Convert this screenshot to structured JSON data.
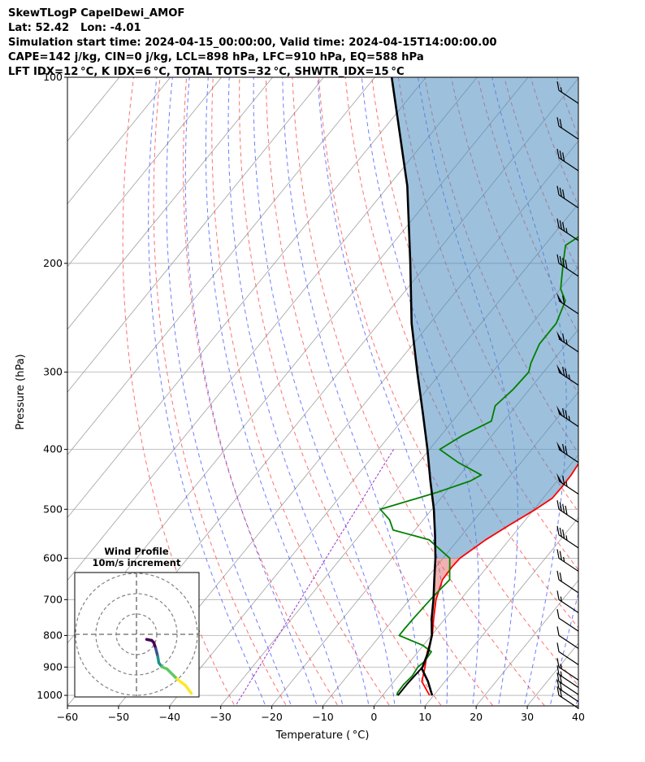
{
  "title_lines": [
    "SkewTLogP CapelDewi_AMOF",
    "Lat: 52.42   Lon: -4.01",
    "Simulation start time: 2024-04-15_00:00:00, Valid time: 2024-04-15T14:00:00.00",
    "CAPE=142 j/kg, CIN=0 j/kg, LCL=898 hPa, LFC=910 hPa, EQ=588 hPa",
    "LFT IDX=12 °C, K IDX=6 °C, TOTAL TOTS=32 °C, SHWTR_IDX=15 °C"
  ],
  "chart_data": {
    "type": "skewt",
    "xlabel": "Temperature ( °C)",
    "ylabel": "Pressure (hPa)",
    "xlim": [
      -60,
      40
    ],
    "ylim": [
      1040,
      100
    ],
    "x_ticks": [
      -60,
      -50,
      -40,
      -30,
      -20,
      -10,
      0,
      10,
      20,
      30,
      40
    ],
    "x_tick_labels": [
      "−60",
      "−50",
      "−40",
      "−30",
      "−20",
      "−10",
      "0",
      "10",
      "20",
      "30",
      "40"
    ],
    "y_ticks": [
      1000,
      900,
      800,
      700,
      600,
      500,
      400,
      300,
      200,
      100
    ],
    "y_tick_labels": [
      "1000",
      "900",
      "800",
      "700",
      "600",
      "500",
      "400",
      "300",
      "200",
      "100"
    ],
    "grid": true,
    "series": [
      {
        "kind": "temperature",
        "color": "#ff0000",
        "points": [
          [
            1000,
            9.2
          ],
          [
            950,
            5.5
          ],
          [
            900,
            3.8
          ],
          [
            850,
            1.8
          ],
          [
            800,
            0.2
          ],
          [
            750,
            -2.3
          ],
          [
            700,
            -4.8
          ],
          [
            650,
            -6.7
          ],
          [
            620,
            -6.9
          ],
          [
            600,
            -6.7
          ],
          [
            560,
            -4.6
          ],
          [
            530,
            -2.3
          ],
          [
            500,
            0.3
          ],
          [
            480,
            1.8
          ],
          [
            460,
            1.9
          ],
          [
            440,
            1.8
          ],
          [
            420,
            1.4
          ],
          [
            400,
            0.6
          ],
          [
            380,
            0.3
          ],
          [
            360,
            -0.3
          ],
          [
            340,
            -0.5
          ],
          [
            320,
            0.0
          ],
          [
            300,
            0.6
          ],
          [
            280,
            1.7
          ],
          [
            260,
            3.1
          ],
          [
            240,
            4.0
          ],
          [
            220,
            5.6
          ],
          [
            200,
            7.5
          ],
          [
            185,
            9.7
          ],
          [
            170,
            12.0
          ],
          [
            160,
            13.5
          ],
          [
            145,
            16.7
          ],
          [
            130,
            18.4
          ],
          [
            115,
            20.8
          ],
          [
            100,
            21.3
          ]
        ]
      },
      {
        "kind": "dewpoint",
        "color": "#008000",
        "points": [
          [
            1000,
            2.8
          ],
          [
            990,
            2.5
          ],
          [
            960,
            2.4
          ],
          [
            930,
            2.7
          ],
          [
            900,
            2.4
          ],
          [
            880,
            2.8
          ],
          [
            850,
            2.6
          ],
          [
            830,
            -0.1
          ],
          [
            800,
            -6.3
          ],
          [
            780,
            -6.3
          ],
          [
            750,
            -6.2
          ],
          [
            700,
            -5.9
          ],
          [
            650,
            -5.3
          ],
          [
            600,
            -8.7
          ],
          [
            560,
            -15.7
          ],
          [
            540,
            -24.3
          ],
          [
            520,
            -26.6
          ],
          [
            500,
            -30.1
          ],
          [
            470,
            -21.8
          ],
          [
            450,
            -17.0
          ],
          [
            440,
            -15.8
          ],
          [
            420,
            -22.3
          ],
          [
            400,
            -28.0
          ],
          [
            380,
            -25.8
          ],
          [
            360,
            -22.4
          ],
          [
            340,
            -24.1
          ],
          [
            320,
            -23.2
          ],
          [
            300,
            -22.9
          ],
          [
            290,
            -23.9
          ],
          [
            270,
            -25.3
          ],
          [
            250,
            -25.3
          ],
          [
            230,
            -27.1
          ],
          [
            220,
            -29.9
          ],
          [
            200,
            -33.5
          ],
          [
            187,
            -35.9
          ],
          [
            170,
            -32.3
          ],
          [
            150,
            -28.4
          ],
          [
            130,
            -23.9
          ],
          [
            115,
            -20.2
          ],
          [
            100,
            -16.0
          ]
        ]
      },
      {
        "kind": "parcel",
        "color": "#000000",
        "points": [
          [
            1000,
            9.7
          ],
          [
            950,
            6.7
          ],
          [
            905,
            3.4
          ],
          [
            900,
            3.3
          ],
          [
            850,
            2.0
          ],
          [
            800,
            0.1
          ],
          [
            750,
            -2.7
          ],
          [
            700,
            -5.3
          ],
          [
            650,
            -8.3
          ],
          [
            600,
            -11.5
          ],
          [
            550,
            -15.3
          ],
          [
            500,
            -19.6
          ],
          [
            450,
            -24.8
          ],
          [
            400,
            -30.4
          ],
          [
            350,
            -37.0
          ],
          [
            300,
            -44.7
          ],
          [
            250,
            -53.6
          ],
          [
            200,
            -63.4
          ],
          [
            150,
            -76.3
          ],
          [
            100,
            -96.7
          ]
        ]
      },
      {
        "kind": "dcape_trace",
        "color": "#000000",
        "points": [
          [
            1000,
            3.0
          ],
          [
            960,
            3.0
          ],
          [
            900,
            3.3
          ]
        ]
      }
    ],
    "wind_barbs": [
      {
        "p": 1000,
        "speed": 20,
        "dir": 290
      },
      {
        "p": 975,
        "speed": 20,
        "dir": 290
      },
      {
        "p": 950,
        "speed": 20,
        "dir": 285
      },
      {
        "p": 925,
        "speed": 15,
        "dir": 285
      },
      {
        "p": 900,
        "speed": 15,
        "dir": 280
      },
      {
        "p": 850,
        "speed": 10,
        "dir": 290
      },
      {
        "p": 800,
        "speed": 10,
        "dir": 300
      },
      {
        "p": 750,
        "speed": 10,
        "dir": 300
      },
      {
        "p": 700,
        "speed": 15,
        "dir": 300
      },
      {
        "p": 650,
        "speed": 20,
        "dir": 300
      },
      {
        "p": 600,
        "speed": 25,
        "dir": 300
      },
      {
        "p": 550,
        "speed": 35,
        "dir": 300
      },
      {
        "p": 500,
        "speed": 40,
        "dir": 300
      },
      {
        "p": 450,
        "speed": 65,
        "dir": 300
      },
      {
        "p": 400,
        "speed": 70,
        "dir": 300
      },
      {
        "p": 350,
        "speed": 75,
        "dir": 300
      },
      {
        "p": 300,
        "speed": 75,
        "dir": 300
      },
      {
        "p": 265,
        "speed": 65,
        "dir": 300
      },
      {
        "p": 230,
        "speed": 60,
        "dir": 300
      },
      {
        "p": 200,
        "speed": 40,
        "dir": 300
      },
      {
        "p": 175,
        "speed": 35,
        "dir": 300
      },
      {
        "p": 155,
        "speed": 30,
        "dir": 300
      },
      {
        "p": 135,
        "speed": 30,
        "dir": 300
      },
      {
        "p": 120,
        "speed": 20,
        "dir": 300
      },
      {
        "p": 105,
        "speed": 15,
        "dir": 300
      }
    ],
    "hodograph": {
      "title_lines": [
        "Wind Profile",
        "10m/s increment"
      ],
      "ring_increment": 10,
      "rings": 3,
      "trace_colors": [
        "#440154",
        "#3b528b",
        "#21918c",
        "#5ec962",
        "#fde725"
      ],
      "points": [
        [
          5,
          -2.5
        ],
        [
          7.5,
          -3
        ],
        [
          8.5,
          -4
        ],
        [
          9.5,
          -7
        ],
        [
          10,
          -9
        ],
        [
          10.5,
          -11
        ],
        [
          11,
          -14
        ],
        [
          12.5,
          -16
        ],
        [
          15,
          -17
        ],
        [
          20,
          -22
        ],
        [
          24,
          -25
        ],
        [
          27,
          -29
        ]
      ]
    }
  }
}
